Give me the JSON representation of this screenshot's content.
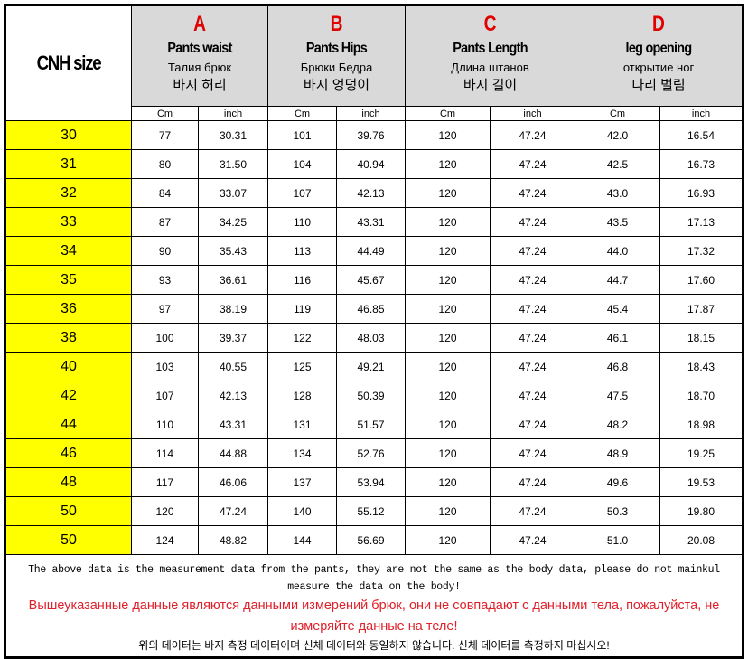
{
  "size_header": "CNH size",
  "columns": [
    {
      "letter": "A",
      "en": "Pants waist",
      "ru": "Талия брюк",
      "ko": "바지 허리"
    },
    {
      "letter": "B",
      "en": "Pants Hips",
      "ru": "Брюки Бедра",
      "ko": "바지 엉덩이"
    },
    {
      "letter": "C",
      "en": "Pants Length",
      "ru": "Длина штанов",
      "ko": "바지 길이"
    },
    {
      "letter": "D",
      "en": "leg opening",
      "ru": "открытие ног",
      "ko": "다리 벌림"
    }
  ],
  "units": [
    "Cm",
    "inch"
  ],
  "rows": [
    [
      "30",
      "77",
      "30.31",
      "101",
      "39.76",
      "120",
      "47.24",
      "42.0",
      "16.54"
    ],
    [
      "31",
      "80",
      "31.50",
      "104",
      "40.94",
      "120",
      "47.24",
      "42.5",
      "16.73"
    ],
    [
      "32",
      "84",
      "33.07",
      "107",
      "42.13",
      "120",
      "47.24",
      "43.0",
      "16.93"
    ],
    [
      "33",
      "87",
      "34.25",
      "110",
      "43.31",
      "120",
      "47.24",
      "43.5",
      "17.13"
    ],
    [
      "34",
      "90",
      "35.43",
      "113",
      "44.49",
      "120",
      "47.24",
      "44.0",
      "17.32"
    ],
    [
      "35",
      "93",
      "36.61",
      "116",
      "45.67",
      "120",
      "47.24",
      "44.7",
      "17.60"
    ],
    [
      "36",
      "97",
      "38.19",
      "119",
      "46.85",
      "120",
      "47.24",
      "45.4",
      "17.87"
    ],
    [
      "38",
      "100",
      "39.37",
      "122",
      "48.03",
      "120",
      "47.24",
      "46.1",
      "18.15"
    ],
    [
      "40",
      "103",
      "40.55",
      "125",
      "49.21",
      "120",
      "47.24",
      "46.8",
      "18.43"
    ],
    [
      "42",
      "107",
      "42.13",
      "128",
      "50.39",
      "120",
      "47.24",
      "47.5",
      "18.70"
    ],
    [
      "44",
      "110",
      "43.31",
      "131",
      "51.57",
      "120",
      "47.24",
      "48.2",
      "18.98"
    ],
    [
      "46",
      "114",
      "44.88",
      "134",
      "52.76",
      "120",
      "47.24",
      "48.9",
      "19.25"
    ],
    [
      "48",
      "117",
      "46.06",
      "137",
      "53.94",
      "120",
      "47.24",
      "49.6",
      "19.53"
    ],
    [
      "50",
      "120",
      "47.24",
      "140",
      "55.12",
      "120",
      "47.24",
      "50.3",
      "19.80"
    ],
    [
      "50",
      "124",
      "48.82",
      "144",
      "56.69",
      "120",
      "47.24",
      "51.0",
      "20.08"
    ]
  ],
  "footer": {
    "en": "The above data is the measurement data from the pants, they are not the same as the body data, please do not mainkul measure the data on the body!",
    "ru": "Вышеуказанные данные являются данными измерений брюк, они не совпадают с данными тела, пожалуйста, не измеряйте данные на теле!",
    "ko": "위의 데이터는 바지 측정 데이터이며 신체 데이터와 동일하지 않습니다. 신체 데이터를 측정하지 마십시오!"
  },
  "colors": {
    "size_bg": "#ffff00",
    "header_bg": "#d9d9d9",
    "letter": "#e00000",
    "ru_note": "#e0202a"
  }
}
